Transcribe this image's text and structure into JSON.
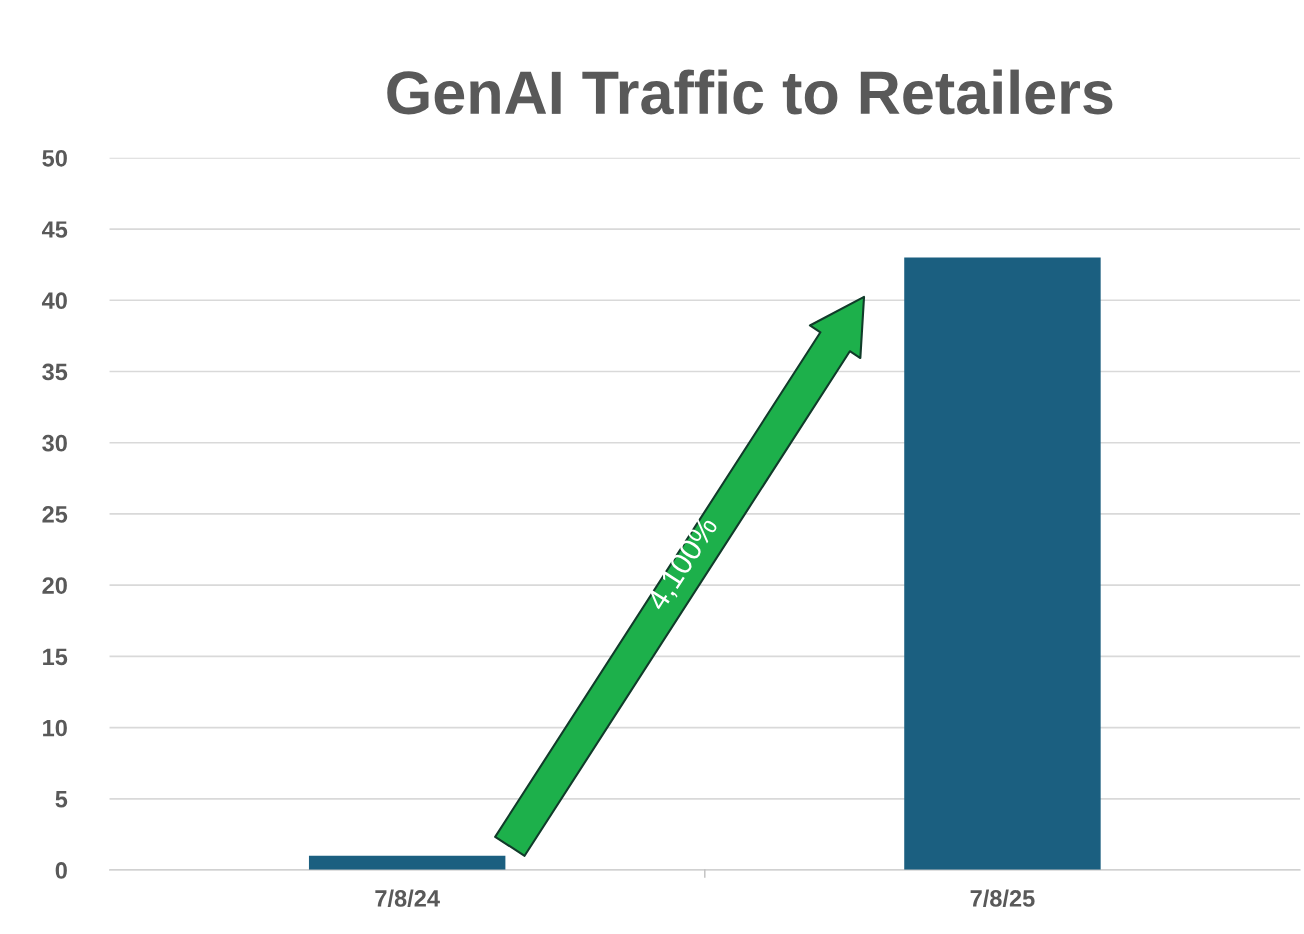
{
  "chart_data": {
    "type": "bar",
    "title": "GenAI Traffic to Retailers",
    "categories": [
      "7/8/24",
      "7/8/25"
    ],
    "values": [
      1,
      43
    ],
    "color": "#1b5f80",
    "ylim": [
      0,
      50
    ],
    "yticks": [
      0,
      5,
      10,
      15,
      20,
      25,
      30,
      35,
      40,
      45,
      50
    ],
    "grid": "y",
    "annotations": [
      "4,100%"
    ]
  }
}
